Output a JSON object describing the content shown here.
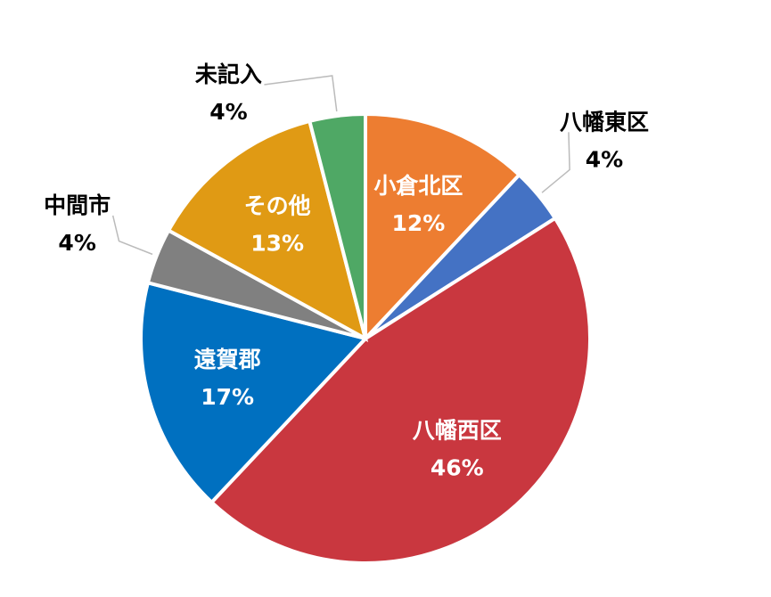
{
  "chart_data": {
    "type": "pie",
    "categories": [
      "小倉北区",
      "八幡東区",
      "八幡西区",
      "遠賀郡",
      "中間市",
      "その他",
      "未記入"
    ],
    "values": [
      12,
      4,
      46,
      17,
      4,
      13,
      4
    ],
    "value_labels": [
      "12%",
      "4%",
      "46%",
      "17%",
      "4%",
      "13%",
      "4%"
    ],
    "colors": [
      "#ED7D31",
      "#4472C4",
      "#C9373F",
      "#0070C0",
      "#808080",
      "#E09A14",
      "#4FA865"
    ]
  }
}
